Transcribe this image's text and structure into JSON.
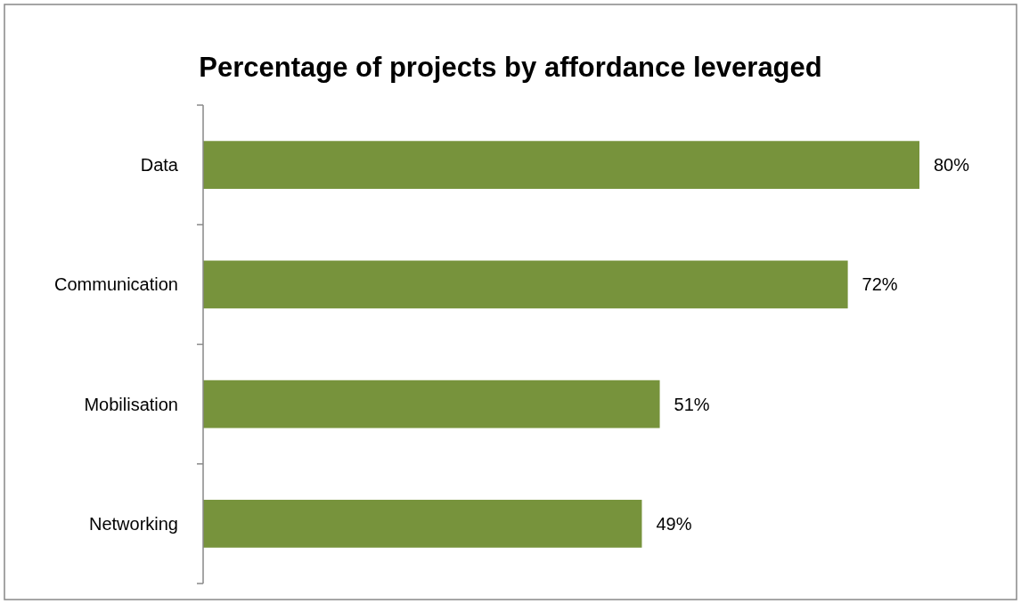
{
  "chart_data": {
    "type": "bar",
    "orientation": "horizontal",
    "title": "Percentage of projects by affordance leveraged",
    "categories": [
      "Data",
      "Communication",
      "Mobilisation",
      "Networking"
    ],
    "values": [
      80,
      72,
      51,
      49
    ],
    "value_labels": [
      "80%",
      "72%",
      "51%",
      "49%"
    ],
    "color": "#77933c",
    "tick_labels": "y"
  }
}
